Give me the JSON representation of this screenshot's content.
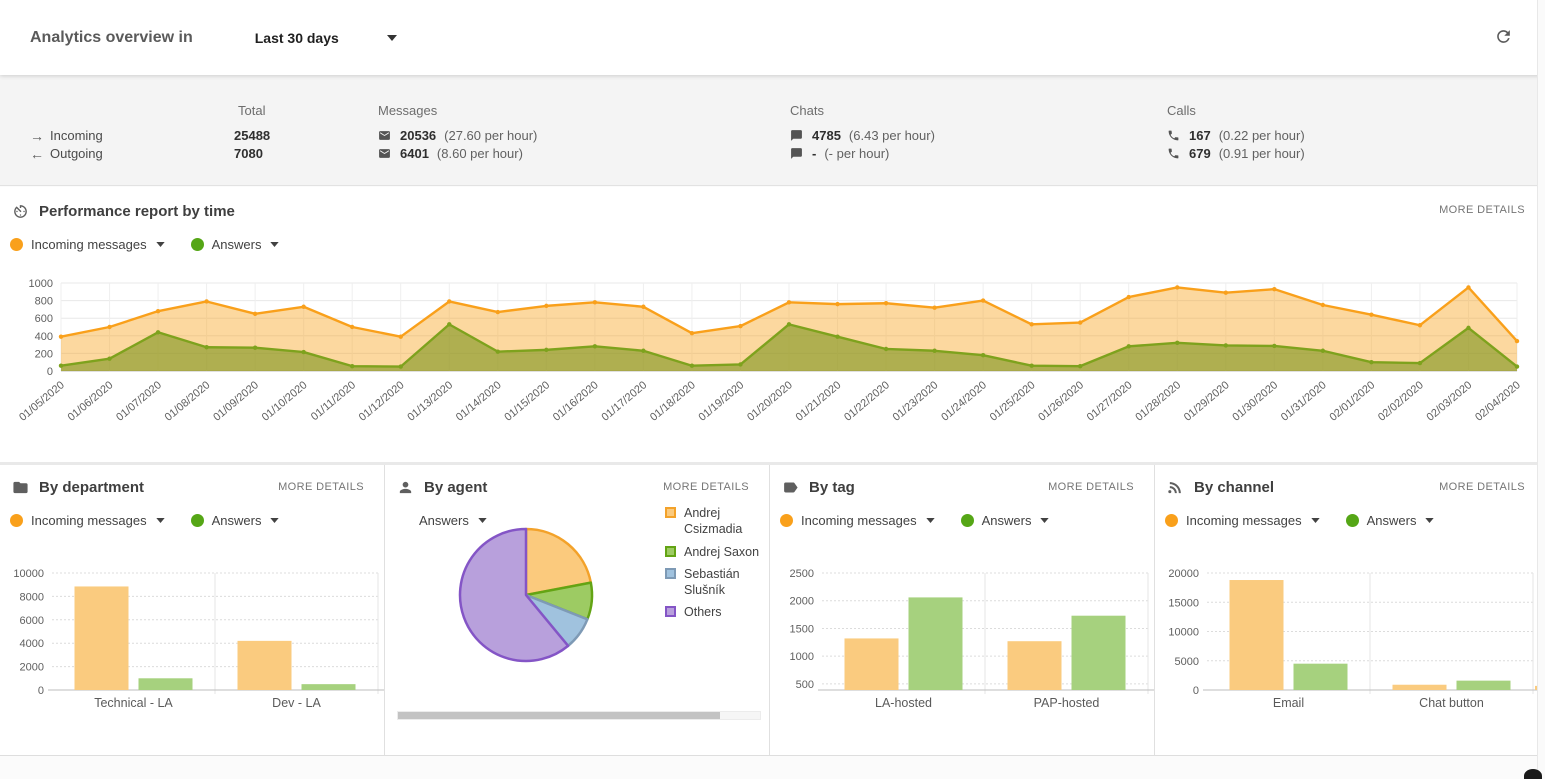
{
  "header": {
    "title": "Analytics overview in",
    "range_value": "Last 30 days"
  },
  "stats": {
    "rows": [
      {
        "icon": "arrow-right",
        "label": "Incoming"
      },
      {
        "icon": "arrow-left",
        "label": "Outgoing"
      }
    ],
    "columns": [
      {
        "key": "total",
        "header": "Total",
        "icon": null,
        "values": [
          "25488",
          "7080"
        ],
        "notes": [
          "",
          ""
        ]
      },
      {
        "key": "messages",
        "header": "Messages",
        "icon": "envelope",
        "values": [
          "20536",
          "6401"
        ],
        "notes": [
          "(27.60 per hour)",
          "(8.60 per hour)"
        ]
      },
      {
        "key": "chats",
        "header": "Chats",
        "icon": "chat",
        "values": [
          "4785",
          "-"
        ],
        "notes": [
          "(6.43 per hour)",
          "(- per hour)"
        ]
      },
      {
        "key": "calls",
        "header": "Calls",
        "icon": "phone",
        "values": [
          "167",
          "679"
        ],
        "notes": [
          "(0.22 per hour)",
          "(0.91 per hour)"
        ]
      }
    ]
  },
  "performance": {
    "title": "Performance report by time",
    "more_details": "MORE DETAILS",
    "legend": [
      {
        "label": "Incoming messages",
        "color": "#f9a01b"
      },
      {
        "label": "Answers",
        "color": "#55a616"
      }
    ]
  },
  "panels": {
    "department": {
      "title": "By department",
      "more_details": "MORE DETAILS",
      "legend": [
        {
          "label": "Incoming messages",
          "color": "#f9a01b"
        },
        {
          "label": "Answers",
          "color": "#55a616"
        }
      ]
    },
    "agent": {
      "title": "By agent",
      "more_details": "MORE DETAILS",
      "selector": "Answers"
    },
    "tag": {
      "title": "By tag",
      "more_details": "MORE DETAILS",
      "legend": [
        {
          "label": "Incoming messages",
          "color": "#f9a01b"
        },
        {
          "label": "Answers",
          "color": "#55a616"
        }
      ]
    },
    "channel": {
      "title": "By channel",
      "more_details": "MORE DETAILS",
      "legend": [
        {
          "label": "Incoming messages",
          "color": "#f9a01b"
        },
        {
          "label": "Answers",
          "color": "#55a616"
        }
      ]
    }
  },
  "chart_data": [
    {
      "id": "time",
      "type": "area",
      "title": "Performance report by time",
      "x": [
        "01/05/2020",
        "01/06/2020",
        "01/07/2020",
        "01/08/2020",
        "01/09/2020",
        "01/10/2020",
        "01/11/2020",
        "01/12/2020",
        "01/13/2020",
        "01/14/2020",
        "01/15/2020",
        "01/16/2020",
        "01/17/2020",
        "01/18/2020",
        "01/19/2020",
        "01/20/2020",
        "01/21/2020",
        "01/22/2020",
        "01/23/2020",
        "01/24/2020",
        "01/25/2020",
        "01/26/2020",
        "01/27/2020",
        "01/28/2020",
        "01/29/2020",
        "01/30/2020",
        "01/31/2020",
        "02/01/2020",
        "02/02/2020",
        "02/03/2020",
        "02/04/2020"
      ],
      "ylim": [
        0,
        1000
      ],
      "yticks": [
        0,
        200,
        400,
        600,
        800,
        1000
      ],
      "grid": true,
      "series": [
        {
          "name": "Incoming messages",
          "color": "#f9a01b",
          "fill": "rgba(249,161,27,0.42)",
          "values": [
            390,
            500,
            680,
            790,
            650,
            730,
            500,
            390,
            790,
            670,
            740,
            780,
            730,
            430,
            510,
            780,
            760,
            770,
            720,
            800,
            530,
            550,
            840,
            950,
            890,
            930,
            750,
            640,
            520,
            950,
            340
          ]
        },
        {
          "name": "Answers",
          "color": "#7ea21d",
          "fill": "rgba(128,150,32,0.62)",
          "values": [
            60,
            140,
            440,
            270,
            265,
            215,
            55,
            50,
            530,
            220,
            240,
            280,
            230,
            60,
            75,
            530,
            390,
            250,
            230,
            180,
            60,
            55,
            280,
            320,
            290,
            285,
            230,
            100,
            90,
            490,
            50
          ]
        }
      ]
    },
    {
      "id": "department",
      "type": "bar",
      "title": "By department",
      "categories": [
        "Technical - LA",
        "Dev - LA"
      ],
      "ylim": [
        0,
        10000
      ],
      "yticks": [
        0,
        2000,
        4000,
        6000,
        8000,
        10000
      ],
      "series": [
        {
          "name": "Incoming messages",
          "color": "#facb7f",
          "values": [
            8850,
            4200
          ]
        },
        {
          "name": "Answers",
          "color": "#a6d17e",
          "values": [
            1000,
            500
          ]
        }
      ]
    },
    {
      "id": "agent",
      "type": "pie",
      "title": "By agent",
      "metric": "Answers",
      "slices": [
        {
          "label": "Andrej Csizmadia",
          "percent": 22,
          "fill": "#fbca7d",
          "stroke": "#f3a22a"
        },
        {
          "label": "Andrej Saxon",
          "percent": 9,
          "fill": "#9dcb63",
          "stroke": "#63a414"
        },
        {
          "label": "Sebastián Slušník",
          "percent": 8,
          "fill": "#a0c2de",
          "stroke": "#7e9ab5"
        },
        {
          "label": "Others",
          "percent": 61,
          "fill": "#b8a0dc",
          "stroke": "#8455c6"
        }
      ]
    },
    {
      "id": "tag",
      "type": "bar",
      "title": "By tag",
      "categories": [
        "LA-hosted",
        "PAP-hosted"
      ],
      "ylim": [
        390,
        2500
      ],
      "yticks": [
        500,
        1000,
        1500,
        2000,
        2500
      ],
      "series": [
        {
          "name": "Incoming messages",
          "color": "#facb7f",
          "values": [
            1320,
            1270
          ]
        },
        {
          "name": "Answers",
          "color": "#a6d17e",
          "values": [
            2060,
            1730
          ]
        }
      ]
    },
    {
      "id": "channel",
      "type": "bar",
      "title": "By channel",
      "categories": [
        "Email",
        "Chat button"
      ],
      "ylim": [
        0,
        20000
      ],
      "yticks": [
        0,
        5000,
        10000,
        15000,
        20000
      ],
      "partial_bar": {
        "series": "Incoming messages",
        "value": 700
      },
      "series": [
        {
          "name": "Incoming messages",
          "color": "#facb7f",
          "values": [
            18800,
            900
          ]
        },
        {
          "name": "Answers",
          "color": "#a6d17e",
          "values": [
            4500,
            1600
          ]
        }
      ]
    }
  ]
}
